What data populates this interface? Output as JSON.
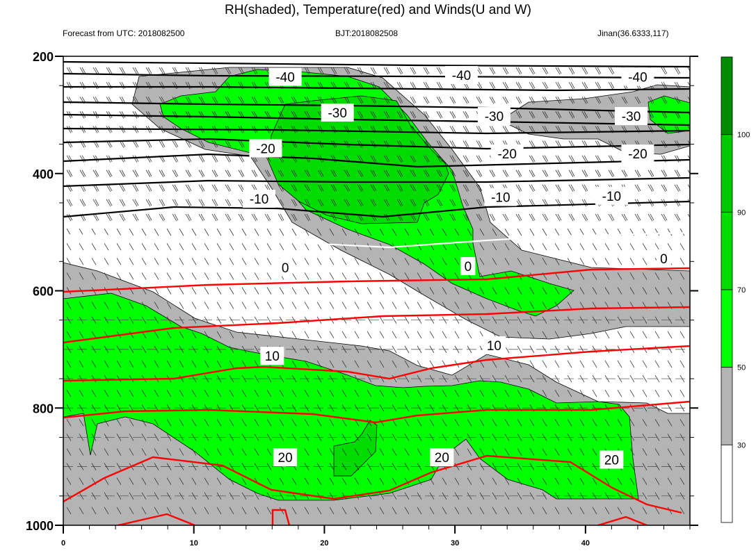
{
  "header": {
    "title": "RH(shaded), Temperature(red) and Winds(U and W)",
    "left_subtitle": "Forecast from UTC: 2018082500",
    "center_subtitle": "BJT:2018082508",
    "right_subtitle": "Jinan(36.6333,117)"
  },
  "chart_data": {
    "type": "contour",
    "title": "RH(shaded), Temperature(red) and Winds(U and W)",
    "x_ticks": [
      "0",
      "10",
      "20",
      "30",
      "40"
    ],
    "x_range": [
      0,
      48
    ],
    "y_ticks": [
      "200",
      "400",
      "600",
      "800",
      "1000"
    ],
    "y_range": [
      200,
      1000
    ],
    "y_inverted": true,
    "colorbar": {
      "levels": [
        "30",
        "50",
        "70",
        "90",
        "100"
      ],
      "colors": [
        "#ffffff",
        "#b4b4b4",
        "#00ff00",
        "#00dc00",
        "#00c800",
        "#008c00"
      ]
    },
    "temperature_labels": [
      {
        "text": "-40",
        "x": 17,
        "p": 235
      },
      {
        "text": "-40",
        "x": 30.5,
        "p": 232
      },
      {
        "text": "-40",
        "x": 44,
        "p": 235
      },
      {
        "text": "-30",
        "x": 21,
        "p": 296
      },
      {
        "text": "-30",
        "x": 33,
        "p": 302
      },
      {
        "text": "-30",
        "x": 43.5,
        "p": 302
      },
      {
        "text": "-20",
        "x": 15.5,
        "p": 357
      },
      {
        "text": "-20",
        "x": 34,
        "p": 366
      },
      {
        "text": "-20",
        "x": 44,
        "p": 366
      },
      {
        "text": "-10",
        "x": 15,
        "p": 443
      },
      {
        "text": "-10",
        "x": 33.5,
        "p": 440
      },
      {
        "text": "-10",
        "x": 42,
        "p": 438
      },
      {
        "text": "0",
        "x": 17,
        "p": 560
      },
      {
        "text": "0",
        "x": 31,
        "p": 558
      },
      {
        "text": "0",
        "x": 46,
        "p": 545
      },
      {
        "text": "10",
        "x": 16,
        "p": 711
      },
      {
        "text": "10",
        "x": 33,
        "p": 693
      },
      {
        "text": "20",
        "x": 17,
        "p": 884
      },
      {
        "text": "20",
        "x": 29,
        "p": 884
      },
      {
        "text": "20",
        "x": 42,
        "p": 888
      }
    ]
  }
}
